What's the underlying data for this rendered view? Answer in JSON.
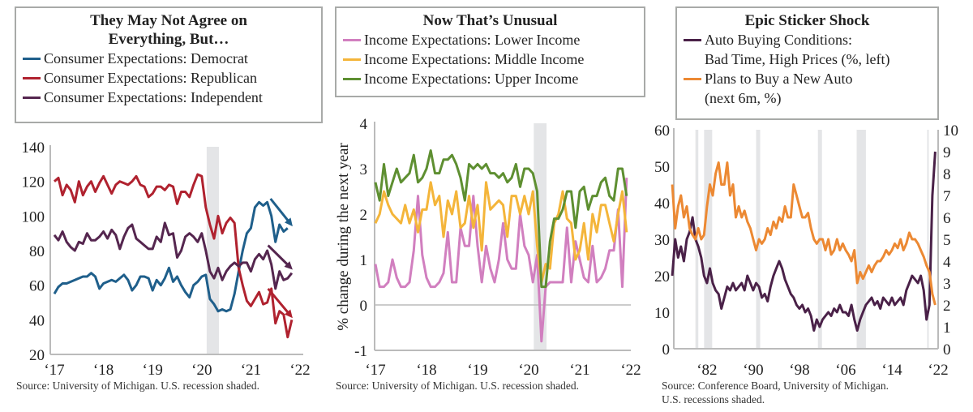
{
  "colors": {
    "democrat": "#1f5f8b",
    "republican": "#b0222f",
    "independent": "#55264f",
    "lower": "#d17fbf",
    "middle": "#f4b53a",
    "upper": "#5e8f31",
    "auto_bad": "#4a2148",
    "plans_buy": "#ec8933",
    "recession": "#e4e5e7",
    "axis": "#bbbbbb"
  },
  "panels": [
    {
      "title": "They May Not Agree on Everything, But…",
      "source": "Source: University of Michigan. U.S. recession shaded.",
      "legend": [
        "Consumer Expectations: Democrat",
        "Consumer Expectations: Republican",
        "Consumer Expectations: Independent"
      ]
    },
    {
      "title": "Now That’s Unusual",
      "source": "Source: University of Michigan. U.S. recession shaded.",
      "legend": [
        "Income Expectations: Lower Income",
        "Income Expectations: Middle Income",
        "Income Expectations: Upper Income"
      ]
    },
    {
      "title": "Epic Sticker Shock",
      "source": "Source: Conference Board, University of Michigan.\nU.S. recessions shaded.",
      "legend": [
        "Auto Buying Conditions:\nBad Time, High Prices (%, left)",
        "Plans to Buy a New Auto\n(next 6m, %)"
      ]
    }
  ],
  "chart_data": [
    {
      "type": "line",
      "title": "They May Not Agree on Everything, But…",
      "xlabel": "",
      "ylabel": "",
      "ylim": [
        20,
        140
      ],
      "yticks": [
        20,
        40,
        60,
        80,
        100,
        120,
        140
      ],
      "xticks": [
        "‘17",
        "‘18",
        "‘19",
        "‘20",
        "‘21",
        "‘22"
      ],
      "xrange": [
        2017,
        2022
      ],
      "start": 2017.0,
      "frequency": "monthly",
      "recessions": [
        [
          2020.1,
          2020.35
        ]
      ],
      "series": [
        {
          "name": "Consumer Expectations: Democrat",
          "color_key": "democrat",
          "values": [
            55,
            59,
            61,
            61,
            62,
            63,
            64,
            65,
            65,
            67,
            65,
            58,
            61,
            62,
            63,
            62,
            64,
            66,
            63,
            57,
            60,
            65,
            65,
            64,
            57,
            63,
            60,
            64,
            70,
            62,
            65,
            60,
            56,
            53,
            60,
            62,
            65,
            66,
            52,
            49,
            45,
            46,
            45,
            46,
            55,
            68,
            80,
            90,
            93,
            105,
            108,
            106,
            108,
            100,
            85,
            95,
            91,
            93
          ],
          "arrow": [
            [
              2021.4,
              110
            ],
            [
              2021.85,
              94
            ]
          ]
        },
        {
          "name": "Consumer Expectations: Republican",
          "color_key": "republican",
          "values": [
            120,
            122,
            112,
            118,
            115,
            108,
            120,
            112,
            117,
            120,
            114,
            119,
            123,
            118,
            113,
            118,
            120,
            119,
            118,
            120,
            123,
            118,
            117,
            111,
            113,
            117,
            117,
            115,
            118,
            117,
            107,
            114,
            114,
            111,
            118,
            124,
            123,
            105,
            95,
            87,
            100,
            90,
            96,
            99,
            96,
            70,
            60,
            51,
            48,
            52,
            56,
            49,
            50,
            58,
            38,
            45,
            43,
            30,
            40
          ],
          "arrow": [
            [
              2021.35,
              58
            ],
            [
              2021.85,
              41
            ]
          ]
        },
        {
          "name": "Consumer Expectations: Independent",
          "color_key": "independent",
          "values": [
            89,
            86,
            91,
            85,
            82,
            80,
            85,
            84,
            90,
            86,
            86,
            88,
            91,
            87,
            92,
            89,
            81,
            88,
            93,
            95,
            87,
            85,
            83,
            81,
            81,
            88,
            85,
            96,
            89,
            90,
            76,
            80,
            88,
            90,
            88,
            85,
            90,
            80,
            68,
            64,
            70,
            63,
            68,
            71,
            73,
            71,
            73,
            73,
            68,
            75,
            78,
            75,
            80,
            72,
            58,
            68,
            63,
            64,
            67
          ],
          "arrow": [
            [
              2021.35,
              83
            ],
            [
              2021.85,
              69
            ]
          ]
        }
      ]
    },
    {
      "type": "line",
      "title": "Now That’s Unusual",
      "xlabel": "",
      "ylabel": "% change during the next year",
      "ylim": [
        -1,
        4
      ],
      "yticks": [
        -1,
        0,
        1,
        2,
        3,
        4
      ],
      "xticks": [
        "‘17",
        "‘18",
        "‘19",
        "‘20",
        "‘21",
        "‘22"
      ],
      "xrange": [
        2017,
        2022
      ],
      "start": 2017.0,
      "frequency": "monthly",
      "recessions": [
        [
          2020.1,
          2020.35
        ]
      ],
      "series": [
        {
          "name": "Income Expectations: Lower Income",
          "color_key": "lower",
          "values": [
            0.9,
            0.4,
            0.4,
            0.5,
            1.0,
            0.6,
            0.4,
            0.4,
            0.5,
            1.2,
            2.4,
            1.1,
            0.6,
            0.4,
            0.4,
            0.5,
            0.7,
            1.6,
            0.5,
            0.5,
            1.7,
            1.3,
            1.3,
            2.4,
            1.3,
            0.5,
            1.3,
            0.8,
            0.5,
            1.0,
            1.8,
            1.0,
            0.8,
            0.8,
            2.0,
            1.3,
            1.1,
            0.5,
            1.1,
            -0.8,
            0.4,
            0.5,
            0.5,
            0.5,
            0.5,
            1.7,
            0.5,
            1.4,
            1.0,
            0.6,
            0.5,
            1.3,
            0.5,
            0.6,
            0.8,
            1.2,
            1.2,
            2.1,
            0.4,
            2.8
          ]
        },
        {
          "name": "Income Expectations: Middle Income",
          "color_key": "middle",
          "values": [
            1.8,
            2.0,
            2.5,
            2.2,
            2.0,
            1.9,
            1.8,
            2.2,
            1.8,
            2.1,
            1.6,
            2.1,
            2.1,
            2.7,
            2.2,
            2.4,
            1.5,
            2.3,
            2.0,
            2.5,
            1.7,
            1.8,
            2.4,
            1.7,
            2.2,
            1.2,
            2.7,
            2.1,
            2.2,
            2.3,
            2.2,
            1.5,
            2.4,
            2.4,
            2.0,
            2.4,
            2.0,
            2.5,
            1.3,
            0.5,
            0.9,
            0.8,
            1.8,
            2.0,
            2.5,
            1.9,
            1.8,
            1.0,
            1.2,
            1.8,
            1.0,
            2.0,
            1.6,
            2.2,
            2.2,
            1.8,
            1.4,
            2.0,
            2.5,
            1.6
          ]
        },
        {
          "name": "Income Expectations: Upper Income",
          "color_key": "upper",
          "values": [
            2.7,
            2.3,
            3.1,
            2.4,
            2.7,
            3.0,
            2.7,
            2.8,
            2.9,
            3.3,
            2.7,
            2.8,
            3.0,
            3.4,
            2.9,
            2.9,
            3.2,
            3.2,
            3.3,
            3.1,
            2.8,
            2.3,
            3.1,
            3.0,
            3.1,
            3.0,
            3.1,
            2.9,
            2.9,
            2.8,
            2.9,
            2.7,
            2.8,
            3.1,
            2.6,
            3.0,
            3.0,
            2.9,
            2.5,
            0.4,
            0.4,
            1.4,
            1.9,
            1.9,
            2.1,
            2.5,
            2.5,
            1.7,
            2.5,
            2.6,
            2.1,
            2.4,
            2.4,
            2.7,
            2.8,
            2.4,
            2.3,
            3.0,
            3.0,
            2.4
          ]
        }
      ]
    },
    {
      "type": "line",
      "title": "Epic Sticker Shock",
      "xlabel": "",
      "ylim": [
        0,
        60
      ],
      "yticks": [
        0,
        10,
        20,
        30,
        40,
        50,
        60
      ],
      "y2lim": [
        0,
        10
      ],
      "y2ticks": [
        0,
        1,
        2,
        3,
        4,
        5,
        6,
        7,
        8,
        9,
        10
      ],
      "xticks": [
        "‘82",
        "‘90",
        "‘98",
        "‘06",
        "‘14",
        "‘22"
      ],
      "xtick_years": [
        1982,
        1990,
        1998,
        2006,
        2014,
        2022
      ],
      "xrange": [
        1976.4,
        2022
      ],
      "start": 1976.0,
      "frequency": "semiannual",
      "recessions": [
        [
          1980.0,
          1980.5
        ],
        [
          1981.5,
          1982.9
        ],
        [
          1990.5,
          1991.2
        ],
        [
          2001.2,
          2001.9
        ],
        [
          2007.9,
          2009.5
        ],
        [
          2020.1,
          2020.3
        ]
      ],
      "series": [
        {
          "name": "Auto Buying Conditions: Bad Time, High Prices (%, left)",
          "color_key": "auto_bad",
          "axis": "left",
          "values": [
            20,
            30,
            25,
            28,
            24,
            30,
            32,
            36,
            30,
            28,
            25,
            20,
            18,
            22,
            18,
            16,
            15,
            11,
            14,
            17,
            16,
            18,
            16,
            17,
            18,
            16,
            20,
            18,
            16,
            18,
            17,
            14,
            15,
            13,
            17,
            20,
            22,
            24,
            22,
            19,
            17,
            15,
            14,
            12,
            11,
            12,
            10,
            11,
            9,
            5,
            8,
            6,
            8,
            9,
            10,
            9,
            11,
            10,
            12,
            10,
            10,
            9,
            12,
            8,
            5,
            8,
            10,
            12,
            13,
            14,
            12,
            13,
            11,
            14,
            13,
            12,
            14,
            12,
            13,
            14,
            12,
            16,
            18,
            20,
            19,
            18,
            20,
            16,
            8,
            12,
            42,
            54
          ]
        },
        {
          "name": "Plans to Buy a New Auto (next 6m, %)",
          "color_key": "plans_buy",
          "axis": "right",
          "values": [
            7.5,
            5.5,
            6.5,
            7,
            6,
            6.5,
            5.5,
            5.2,
            5,
            5.5,
            5,
            5.2,
            6.5,
            7.5,
            7,
            8,
            8.5,
            7.5,
            7.5,
            8.5,
            7,
            7.5,
            6,
            6.5,
            6,
            6.3,
            5.8,
            5.5,
            5,
            4.5,
            5,
            4.8,
            5,
            5.5,
            5.2,
            5.8,
            5.5,
            6,
            5.8,
            6.5,
            6,
            6,
            7.5,
            7,
            6.5,
            6,
            6,
            6.2,
            5.5,
            5,
            4.8,
            5,
            5,
            4.5,
            5,
            4.3,
            4.5,
            5,
            4.5,
            4.8,
            4.5,
            4.3,
            4,
            4.5,
            3,
            3.5,
            3.2,
            3.5,
            3.8,
            3.5,
            3.8,
            4,
            4,
            4.2,
            4.5,
            4.3,
            4.5,
            4.8,
            4.6,
            5,
            4.5,
            4.8,
            5.3,
            5,
            5,
            4.8,
            4.5,
            4.2,
            3.8,
            3.5,
            2.5,
            2
          ]
        }
      ]
    }
  ]
}
